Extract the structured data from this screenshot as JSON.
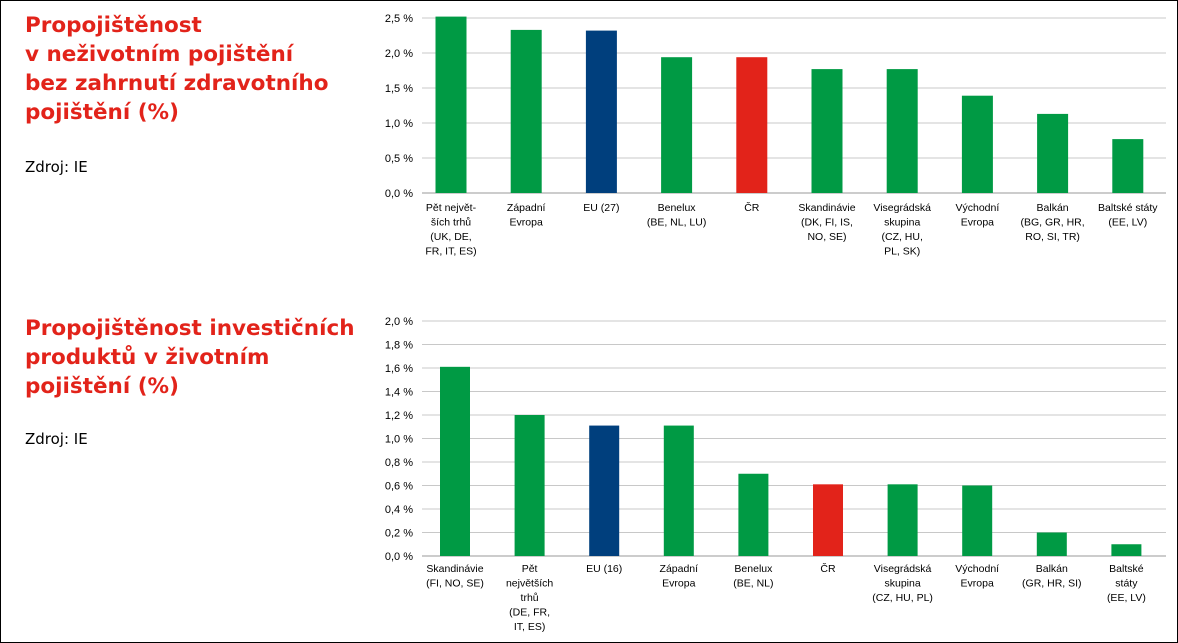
{
  "colors": {
    "green": "#009a44",
    "blue": "#003f7d",
    "red": "#e2231a",
    "title": "#e2231a",
    "grid": "#c8c8c8"
  },
  "panels": [
    {
      "title": "Propojištěnost\nv neživotním pojištění\nbez zahrnutí zdravotního\npojištění (%)",
      "source": "Zdroj: IE"
    },
    {
      "title": "Propojištěnost investičních\nproduktů v životním\npojištění (%)",
      "source": "Zdroj: IE"
    }
  ],
  "chart_data": [
    {
      "type": "bar",
      "title": "Propojištěnost v neživotním pojištění bez zahrnutí zdravotního pojištění (%)",
      "ylim": [
        0,
        2.5
      ],
      "yticks": [
        "0,0 %",
        "0,5 %",
        "1,0 %",
        "1,5 %",
        "2,0 %",
        "2,5 %"
      ],
      "grid": true,
      "categories": [
        [
          "Pět největ-",
          "ších trhů",
          "(UK, DE,",
          "FR, IT, ES)"
        ],
        [
          "Západní",
          "Evropa"
        ],
        [
          "EU (27)"
        ],
        [
          "Benelux",
          "(BE, NL, LU)"
        ],
        [
          "ČR"
        ],
        [
          "Skandinávie",
          "(DK, FI, IS,",
          "NO, SE)"
        ],
        [
          "Visegrádská",
          "skupina",
          "(CZ, HU,",
          "PL, SK)"
        ],
        [
          "Východní",
          "Evropa"
        ],
        [
          "Balkán",
          "(BG, GR, HR,",
          "RO, SI, TR)"
        ],
        [
          "Baltské státy",
          "(EE, LV)"
        ]
      ],
      "values": [
        2.52,
        2.33,
        2.32,
        1.94,
        1.94,
        1.77,
        1.77,
        1.39,
        1.13,
        0.77
      ],
      "bar_colors": [
        "green",
        "green",
        "blue",
        "green",
        "red",
        "green",
        "green",
        "green",
        "green",
        "green"
      ]
    },
    {
      "type": "bar",
      "title": "Propojištěnost investičních produktů v životním pojištění (%)",
      "ylim": [
        0,
        2.0
      ],
      "yticks": [
        "0,0 %",
        "0,2 %",
        "0,4 %",
        "0,6 %",
        "0,8 %",
        "1,0 %",
        "1,2 %",
        "1,4 %",
        "1,6 %",
        "1,8 %",
        "2,0 %"
      ],
      "grid": true,
      "categories": [
        [
          "Skandinávie",
          "(FI, NO, SE)"
        ],
        [
          "Pět",
          "největších",
          "trhů",
          "(DE, FR,",
          "IT, ES)"
        ],
        [
          "EU (16)"
        ],
        [
          "Západní",
          "Evropa"
        ],
        [
          "Benelux",
          "(BE, NL)"
        ],
        [
          "ČR"
        ],
        [
          "Visegrádská",
          "skupina",
          "(CZ, HU, PL)"
        ],
        [
          "Východní",
          "Evropa"
        ],
        [
          "Balkán",
          "(GR, HR, SI)"
        ],
        [
          "Baltské",
          "státy",
          "(EE, LV)"
        ]
      ],
      "values": [
        1.61,
        1.2,
        1.11,
        1.11,
        0.7,
        0.61,
        0.61,
        0.6,
        0.2,
        0.1
      ],
      "bar_colors": [
        "green",
        "green",
        "blue",
        "green",
        "green",
        "red",
        "green",
        "green",
        "green",
        "green"
      ]
    }
  ]
}
